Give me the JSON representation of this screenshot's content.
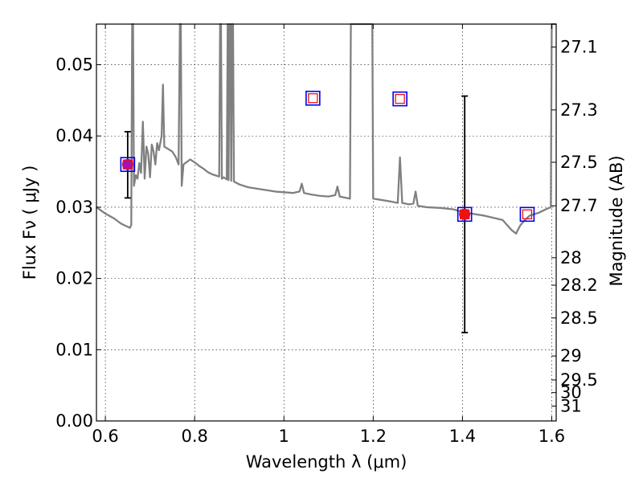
{
  "chart_data": {
    "type": "scatter",
    "title": "",
    "xlabel": "Wavelength  λ (μm)",
    "ylabel": "Flux  Fν ( μJy )",
    "ylabel_right": "Magnitude (AB)",
    "xlim": [
      0.58,
      1.61
    ],
    "ylim": [
      0.0,
      0.0557
    ],
    "grid": true,
    "x_ticks": [
      0.6,
      0.8,
      1.0,
      1.2,
      1.4,
      1.6
    ],
    "x_tick_labels": [
      "0.6",
      "0.8",
      "1",
      "1.2",
      "1.4",
      "1.6"
    ],
    "y_ticks": [
      0.0,
      0.01,
      0.02,
      0.03,
      0.04,
      0.05
    ],
    "y_tick_labels": [
      "0.00",
      "0.01",
      "0.02",
      "0.03",
      "0.04",
      "0.05"
    ],
    "right_ticks": [
      {
        "label": "27.1",
        "mag": 27.1
      },
      {
        "label": "27.3",
        "mag": 27.3
      },
      {
        "label": "27.5",
        "mag": 27.5
      },
      {
        "label": "27.7",
        "mag": 27.7
      },
      {
        "label": "28",
        "mag": 28.0
      },
      {
        "label": "28.2",
        "mag": 28.2
      },
      {
        "label": "28.5",
        "mag": 28.5
      },
      {
        "label": "29",
        "mag": 29.0
      },
      {
        "label": "29.5",
        "mag": 29.5
      },
      {
        "label": "30",
        "mag": 29.9
      },
      {
        "label": "31",
        "mag": 30.6
      }
    ],
    "series": [
      {
        "type": "line",
        "color": "#808080",
        "points": [
          [
            0.58,
            0.03
          ],
          [
            0.6,
            0.0291
          ],
          [
            0.62,
            0.0284
          ],
          [
            0.635,
            0.0277
          ],
          [
            0.645,
            0.0274
          ],
          [
            0.655,
            0.0271
          ],
          [
            0.658,
            0.0275
          ],
          [
            0.66,
            0.056
          ],
          [
            0.662,
            0.056
          ],
          [
            0.664,
            0.033
          ],
          [
            0.668,
            0.0345
          ],
          [
            0.672,
            0.034
          ],
          [
            0.676,
            0.0362
          ],
          [
            0.68,
            0.0348
          ],
          [
            0.684,
            0.042
          ],
          [
            0.688,
            0.034
          ],
          [
            0.692,
            0.0385
          ],
          [
            0.696,
            0.0375
          ],
          [
            0.7,
            0.0342
          ],
          [
            0.704,
            0.0388
          ],
          [
            0.708,
            0.0378
          ],
          [
            0.712,
            0.036
          ],
          [
            0.716,
            0.039
          ],
          [
            0.72,
            0.038
          ],
          [
            0.726,
            0.04
          ],
          [
            0.729,
            0.0472
          ],
          [
            0.732,
            0.0385
          ],
          [
            0.74,
            0.0382
          ],
          [
            0.75,
            0.0378
          ],
          [
            0.758,
            0.037
          ],
          [
            0.764,
            0.036
          ],
          [
            0.767,
            0.056
          ],
          [
            0.769,
            0.056
          ],
          [
            0.771,
            0.033
          ],
          [
            0.775,
            0.036
          ],
          [
            0.79,
            0.0367
          ],
          [
            0.8,
            0.0363
          ],
          [
            0.81,
            0.0358
          ],
          [
            0.82,
            0.0354
          ],
          [
            0.83,
            0.0349
          ],
          [
            0.84,
            0.0346
          ],
          [
            0.855,
            0.0343
          ],
          [
            0.857,
            0.056
          ],
          [
            0.859,
            0.056
          ],
          [
            0.861,
            0.034
          ],
          [
            0.865,
            0.0342
          ],
          [
            0.872,
            0.0339
          ],
          [
            0.874,
            0.056
          ],
          [
            0.876,
            0.0338
          ],
          [
            0.878,
            0.056
          ],
          [
            0.88,
            0.056
          ],
          [
            0.882,
            0.0337
          ],
          [
            0.884,
            0.056
          ],
          [
            0.886,
            0.056
          ],
          [
            0.888,
            0.0336
          ],
          [
            0.9,
            0.0332
          ],
          [
            0.92,
            0.0328
          ],
          [
            0.94,
            0.0326
          ],
          [
            0.96,
            0.0324
          ],
          [
            0.98,
            0.0322
          ],
          [
            1.0,
            0.0321
          ],
          [
            1.02,
            0.032
          ],
          [
            1.035,
            0.0322
          ],
          [
            1.04,
            0.0333
          ],
          [
            1.045,
            0.032
          ],
          [
            1.06,
            0.0318
          ],
          [
            1.08,
            0.0316
          ],
          [
            1.1,
            0.0315
          ],
          [
            1.115,
            0.0317
          ],
          [
            1.12,
            0.0329
          ],
          [
            1.125,
            0.0315
          ],
          [
            1.14,
            0.0313
          ],
          [
            1.148,
            0.0312
          ],
          [
            1.15,
            0.056
          ],
          [
            1.198,
            0.056
          ],
          [
            1.2,
            0.0312
          ],
          [
            1.22,
            0.031
          ],
          [
            1.24,
            0.0308
          ],
          [
            1.255,
            0.0306
          ],
          [
            1.26,
            0.037
          ],
          [
            1.265,
            0.0306
          ],
          [
            1.28,
            0.0304
          ],
          [
            1.29,
            0.0305
          ],
          [
            1.295,
            0.0322
          ],
          [
            1.3,
            0.0302
          ],
          [
            1.32,
            0.03
          ],
          [
            1.35,
            0.0299
          ],
          [
            1.38,
            0.0297
          ],
          [
            1.4,
            0.0293
          ],
          [
            1.42,
            0.0291
          ],
          [
            1.45,
            0.0288
          ],
          [
            1.47,
            0.0285
          ],
          [
            1.49,
            0.0282
          ],
          [
            1.5,
            0.0275
          ],
          [
            1.51,
            0.0268
          ],
          [
            1.52,
            0.0263
          ],
          [
            1.53,
            0.0275
          ],
          [
            1.54,
            0.0282
          ],
          [
            1.55,
            0.0288
          ],
          [
            1.57,
            0.0292
          ],
          [
            1.59,
            0.0298
          ],
          [
            1.598,
            0.03
          ],
          [
            1.6,
            0.056
          ],
          [
            1.61,
            0.056
          ]
        ]
      }
    ],
    "observed": [
      {
        "x": 0.65,
        "y": 0.036,
        "yerr_low": 0.0313,
        "yerr_high": 0.0406,
        "color": "#aa10aa"
      },
      {
        "x": 1.405,
        "y": 0.029,
        "yerr_low": 0.0124,
        "yerr_high": 0.0456,
        "color": "#ee1111"
      }
    ],
    "model_points": [
      {
        "x": 0.65,
        "y": 0.036
      },
      {
        "x": 1.065,
        "y": 0.0453
      },
      {
        "x": 1.26,
        "y": 0.0452
      },
      {
        "x": 1.405,
        "y": 0.029
      },
      {
        "x": 1.545,
        "y": 0.029
      }
    ],
    "colors": {
      "spectrum": "#808080",
      "box_outer": "#0000ee",
      "box_inner": "#ee1111",
      "errorbar": "#000000"
    }
  }
}
